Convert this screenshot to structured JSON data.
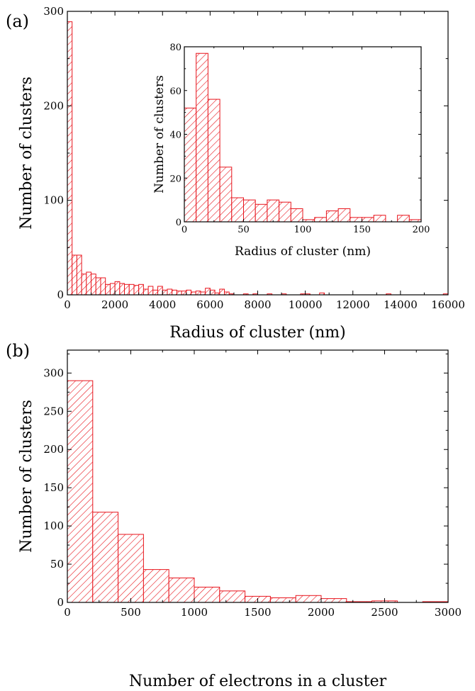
{
  "colors": {
    "bar": "#e8141c",
    "axis": "#000000",
    "background": "#ffffff"
  },
  "panels": {
    "a": {
      "label": "(a)"
    },
    "b": {
      "label": "(b)"
    }
  },
  "chart_data": [
    {
      "id": "a-main",
      "type": "bar",
      "title": "",
      "xlabel": "Radius of cluster (nm)",
      "ylabel": "Number of clusters",
      "xlim": [
        0,
        16000
      ],
      "ylim": [
        0,
        300
      ],
      "bin_width": 200,
      "xticks": [
        0,
        2000,
        4000,
        6000,
        8000,
        10000,
        12000,
        14000,
        16000
      ],
      "yticks": [
        0,
        100,
        200,
        300
      ],
      "fill": "hatch",
      "bins": [
        {
          "x": 0,
          "y": 289
        },
        {
          "x": 200,
          "y": 42
        },
        {
          "x": 400,
          "y": 42
        },
        {
          "x": 600,
          "y": 22
        },
        {
          "x": 800,
          "y": 24
        },
        {
          "x": 1000,
          "y": 22
        },
        {
          "x": 1200,
          "y": 18
        },
        {
          "x": 1400,
          "y": 18
        },
        {
          "x": 1600,
          "y": 11
        },
        {
          "x": 1800,
          "y": 12
        },
        {
          "x": 2000,
          "y": 14
        },
        {
          "x": 2200,
          "y": 12
        },
        {
          "x": 2400,
          "y": 11
        },
        {
          "x": 2600,
          "y": 11
        },
        {
          "x": 2800,
          "y": 10
        },
        {
          "x": 3000,
          "y": 11
        },
        {
          "x": 3200,
          "y": 6
        },
        {
          "x": 3400,
          "y": 9
        },
        {
          "x": 3600,
          "y": 5
        },
        {
          "x": 3800,
          "y": 9
        },
        {
          "x": 4000,
          "y": 5
        },
        {
          "x": 4200,
          "y": 6
        },
        {
          "x": 4400,
          "y": 5
        },
        {
          "x": 4600,
          "y": 4
        },
        {
          "x": 4800,
          "y": 4
        },
        {
          "x": 5000,
          "y": 5
        },
        {
          "x": 5200,
          "y": 3
        },
        {
          "x": 5400,
          "y": 4
        },
        {
          "x": 5600,
          "y": 3
        },
        {
          "x": 5800,
          "y": 7
        },
        {
          "x": 6000,
          "y": 5
        },
        {
          "x": 6200,
          "y": 2
        },
        {
          "x": 6400,
          "y": 6
        },
        {
          "x": 6600,
          "y": 3
        },
        {
          "x": 6800,
          "y": 1
        },
        {
          "x": 7400,
          "y": 1
        },
        {
          "x": 7800,
          "y": 1
        },
        {
          "x": 8400,
          "y": 1
        },
        {
          "x": 9000,
          "y": 1
        },
        {
          "x": 9800,
          "y": 1
        },
        {
          "x": 10000,
          "y": 1
        },
        {
          "x": 10600,
          "y": 2
        },
        {
          "x": 13400,
          "y": 1
        },
        {
          "x": 15800,
          "y": 1
        }
      ]
    },
    {
      "id": "a-inset",
      "type": "bar",
      "title": "",
      "xlabel": "Radius of cluster (nm)",
      "ylabel": "Number of clusters",
      "xlim": [
        0,
        200
      ],
      "ylim": [
        0,
        80
      ],
      "bin_width": 10,
      "xticks": [
        0,
        50,
        100,
        150,
        200
      ],
      "yticks": [
        0,
        20,
        40,
        60,
        80
      ],
      "fill": "hatch",
      "bins": [
        {
          "x": 0,
          "y": 52
        },
        {
          "x": 10,
          "y": 77
        },
        {
          "x": 20,
          "y": 56
        },
        {
          "x": 30,
          "y": 25
        },
        {
          "x": 40,
          "y": 11
        },
        {
          "x": 50,
          "y": 10
        },
        {
          "x": 60,
          "y": 8
        },
        {
          "x": 70,
          "y": 10
        },
        {
          "x": 80,
          "y": 9
        },
        {
          "x": 90,
          "y": 6
        },
        {
          "x": 100,
          "y": 1
        },
        {
          "x": 110,
          "y": 2
        },
        {
          "x": 120,
          "y": 5
        },
        {
          "x": 130,
          "y": 6
        },
        {
          "x": 140,
          "y": 2
        },
        {
          "x": 150,
          "y": 2
        },
        {
          "x": 160,
          "y": 3
        },
        {
          "x": 180,
          "y": 3
        },
        {
          "x": 190,
          "y": 1
        }
      ]
    },
    {
      "id": "b",
      "type": "bar",
      "title": "",
      "xlabel": "Number of electrons in a cluster",
      "ylabel": "Number of clusters",
      "xlim": [
        0,
        3000
      ],
      "ylim": [
        0,
        330
      ],
      "bin_width": 200,
      "xticks": [
        0,
        500,
        1000,
        1500,
        2000,
        2500,
        3000
      ],
      "yticks": [
        0,
        50,
        100,
        150,
        200,
        250,
        300
      ],
      "fill": "hatch",
      "bins": [
        {
          "x": 0,
          "y": 290
        },
        {
          "x": 200,
          "y": 118
        },
        {
          "x": 400,
          "y": 89
        },
        {
          "x": 600,
          "y": 43
        },
        {
          "x": 800,
          "y": 32
        },
        {
          "x": 1000,
          "y": 20
        },
        {
          "x": 1200,
          "y": 15
        },
        {
          "x": 1400,
          "y": 8
        },
        {
          "x": 1600,
          "y": 6
        },
        {
          "x": 1800,
          "y": 9
        },
        {
          "x": 2000,
          "y": 5
        },
        {
          "x": 2200,
          "y": 1
        },
        {
          "x": 2400,
          "y": 2
        },
        {
          "x": 2800,
          "y": 1
        }
      ]
    }
  ]
}
